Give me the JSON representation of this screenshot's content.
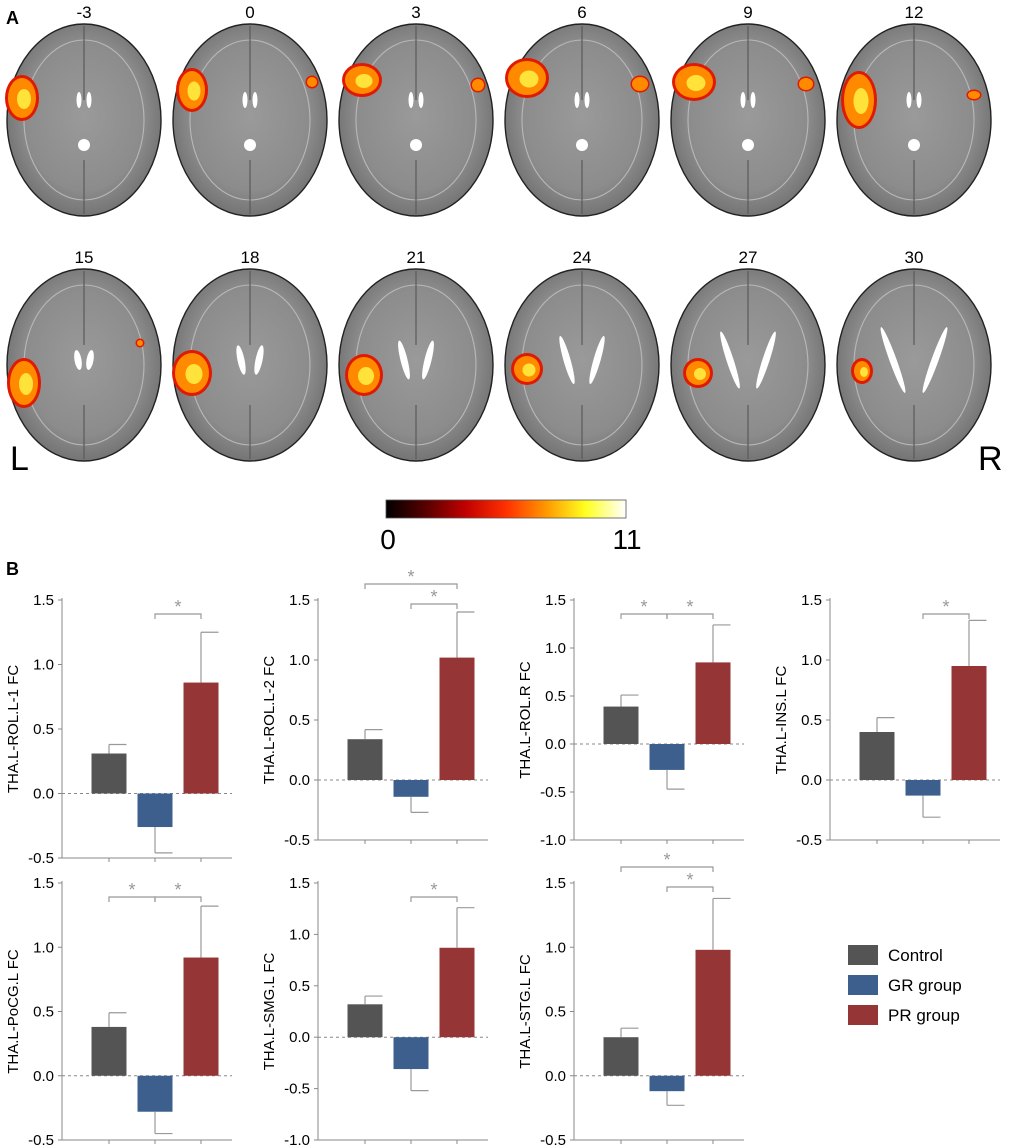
{
  "panel_a": {
    "letter": "A",
    "slices": [
      "-3",
      "0",
      "3",
      "6",
      "9",
      "12",
      "15",
      "18",
      "21",
      "24",
      "27",
      "30"
    ],
    "left_label": "L",
    "right_label": "R",
    "colorbar_min": "0",
    "colorbar_max": "11",
    "colormap": [
      "#000000",
      "#5a0000",
      "#c00000",
      "#ff3000",
      "#ff9a00",
      "#ffff20",
      "#ffffff"
    ],
    "overlay_colors": {
      "core": "#ffe23a",
      "mid": "#ff8a00",
      "edge": "#e01a00"
    }
  },
  "panel_b": {
    "letter": "B",
    "series_colors": {
      "Control": "#545454",
      "GR group": "#3c5f8e",
      "PR group": "#953535"
    }
  },
  "chart_data": [
    {
      "type": "bar",
      "ylabel": "THA.L-ROL.L-1 FC",
      "categories": [
        "Control",
        "GR group",
        "PR group"
      ],
      "values": [
        0.31,
        -0.26,
        0.86
      ],
      "errors": [
        0.07,
        0.2,
        0.39
      ],
      "ylim": [
        -0.5,
        1.5
      ],
      "yticks": [
        "1.5",
        "1.0",
        "0.5",
        "0.0",
        "-0.5"
      ],
      "tickvals": [
        1.5,
        1.0,
        0.5,
        0.0,
        -0.5
      ],
      "significance": [
        {
          "from": 1,
          "to": 2,
          "label": "*"
        }
      ]
    },
    {
      "type": "bar",
      "ylabel": "THA.L-ROL.L-2 FC",
      "categories": [
        "Control",
        "GR group",
        "PR group"
      ],
      "values": [
        0.34,
        -0.14,
        1.02
      ],
      "errors": [
        0.08,
        0.13,
        0.38
      ],
      "ylim": [
        -0.5,
        1.5
      ],
      "yticks": [
        "1.5",
        "1.0",
        "0.5",
        "0.0",
        "-0.5"
      ],
      "tickvals": [
        1.5,
        1.0,
        0.5,
        0.0,
        -0.5
      ],
      "significance": [
        {
          "from": 0,
          "to": 2,
          "label": "*"
        },
        {
          "from": 1,
          "to": 2,
          "label": "*"
        }
      ]
    },
    {
      "type": "bar",
      "ylabel": "THA.L-ROL.R FC",
      "categories": [
        "Control",
        "GR group",
        "PR group"
      ],
      "values": [
        0.39,
        -0.27,
        0.85
      ],
      "errors": [
        0.12,
        0.2,
        0.39
      ],
      "ylim": [
        -1.0,
        1.5
      ],
      "yticks": [
        "1.5",
        "1.0",
        "0.5",
        "0.0",
        "-0.5",
        "-1.0"
      ],
      "tickvals": [
        1.5,
        1.0,
        0.5,
        0.0,
        -0.5,
        -1.0
      ],
      "significance": [
        {
          "from": 0,
          "to": 1,
          "label": "*"
        },
        {
          "from": 1,
          "to": 2,
          "label": "*"
        }
      ]
    },
    {
      "type": "bar",
      "ylabel": "THA.L-INS.L FC",
      "categories": [
        "Control",
        "GR group",
        "PR group"
      ],
      "values": [
        0.4,
        -0.13,
        0.95
      ],
      "errors": [
        0.12,
        0.18,
        0.38
      ],
      "ylim": [
        -0.5,
        1.5
      ],
      "yticks": [
        "1.5",
        "1.0",
        "0.5",
        "0.0",
        "-0.5"
      ],
      "tickvals": [
        1.5,
        1.0,
        0.5,
        0.0,
        -0.5
      ],
      "significance": [
        {
          "from": 1,
          "to": 2,
          "label": "*"
        }
      ]
    },
    {
      "type": "bar",
      "ylabel": "THA.L-PoCG.L FC",
      "categories": [
        "Control",
        "GR group",
        "PR group"
      ],
      "values": [
        0.38,
        -0.28,
        0.92
      ],
      "errors": [
        0.11,
        0.17,
        0.4
      ],
      "ylim": [
        -0.5,
        1.5
      ],
      "yticks": [
        "1.5",
        "1.0",
        "0.5",
        "0.0",
        "-0.5"
      ],
      "tickvals": [
        1.5,
        1.0,
        0.5,
        0.0,
        -0.5
      ],
      "significance": [
        {
          "from": 0,
          "to": 1,
          "label": "*"
        },
        {
          "from": 1,
          "to": 2,
          "label": "*"
        }
      ]
    },
    {
      "type": "bar",
      "ylabel": "THA.L-SMG.L FC",
      "categories": [
        "Control",
        "GR group",
        "PR group"
      ],
      "values": [
        0.32,
        -0.31,
        0.87
      ],
      "errors": [
        0.08,
        0.21,
        0.39
      ],
      "ylim": [
        -1.0,
        1.5
      ],
      "yticks": [
        "1.5",
        "1.0",
        "0.5",
        "0.0",
        "-0.5",
        "-1.0"
      ],
      "tickvals": [
        1.5,
        1.0,
        0.5,
        0.0,
        -0.5,
        -1.0
      ],
      "significance": [
        {
          "from": 1,
          "to": 2,
          "label": "*"
        }
      ]
    },
    {
      "type": "bar",
      "ylabel": "THA.L-STG.L FC",
      "categories": [
        "Control",
        "GR group",
        "PR group"
      ],
      "values": [
        0.3,
        -0.12,
        0.98
      ],
      "errors": [
        0.07,
        0.11,
        0.4
      ],
      "ylim": [
        -0.5,
        1.5
      ],
      "yticks": [
        "1.5",
        "1.0",
        "0.5",
        "0.0",
        "-0.5"
      ],
      "tickvals": [
        1.5,
        1.0,
        0.5,
        0.0,
        -0.5
      ],
      "significance": [
        {
          "from": 0,
          "to": 2,
          "label": "*"
        },
        {
          "from": 1,
          "to": 2,
          "label": "*"
        }
      ]
    }
  ],
  "legend": {
    "items": [
      "Control",
      "GR group",
      "PR group"
    ]
  }
}
